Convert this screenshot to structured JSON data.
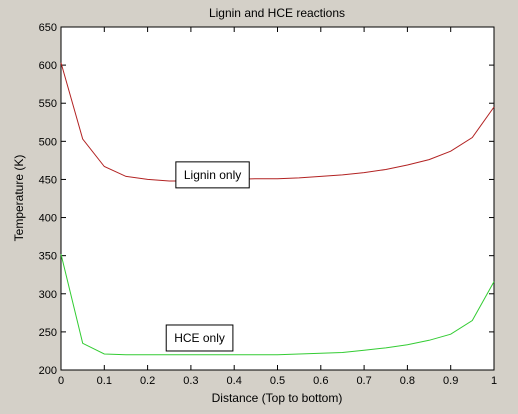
{
  "chart_data": {
    "type": "line",
    "title": "Lignin and HCE reactions",
    "xlabel": "Distance (Top to bottom)",
    "ylabel": "Temperature (K)",
    "xlim": [
      0,
      1
    ],
    "ylim": [
      200,
      650
    ],
    "x_ticks": [
      "0",
      "0.1",
      "0.2",
      "0.3",
      "0.4",
      "0.5",
      "0.6",
      "0.7",
      "0.8",
      "0.9",
      "1"
    ],
    "y_ticks": [
      "200",
      "250",
      "300",
      "350",
      "400",
      "450",
      "500",
      "550",
      "600",
      "650"
    ],
    "grid": false,
    "x": [
      0,
      0.05,
      0.1,
      0.15,
      0.2,
      0.25,
      0.3,
      0.35,
      0.4,
      0.45,
      0.5,
      0.55,
      0.6,
      0.65,
      0.7,
      0.75,
      0.8,
      0.85,
      0.9,
      0.95,
      1.0
    ],
    "series": [
      {
        "color": "#b22222",
        "values": [
          603,
          503,
          467,
          454,
          450,
          448,
          448,
          449,
          450,
          451,
          451,
          452,
          454,
          456,
          459,
          463,
          469,
          476,
          487,
          505,
          545
        ]
      },
      {
        "color": "#33cc33",
        "values": [
          352,
          235,
          221,
          220,
          220,
          220,
          220,
          220,
          220,
          220,
          220,
          221,
          222,
          223,
          226,
          229,
          233,
          239,
          247,
          265,
          316
        ]
      }
    ],
    "annotations": [
      {
        "text": "Lignin only",
        "x": 0.35,
        "y": 456
      },
      {
        "text": "HCE only",
        "x": 0.32,
        "y": 242
      }
    ]
  }
}
